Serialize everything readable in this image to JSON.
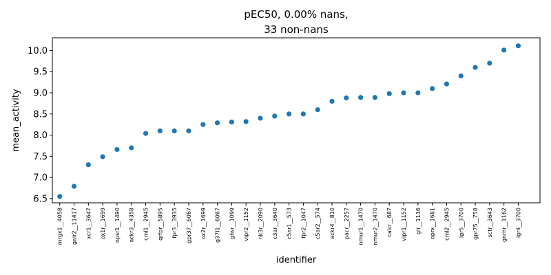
{
  "chart_data": {
    "type": "scatter",
    "title_lines": [
      "pEC50, 0.00% nans,",
      "33 non-nans"
    ],
    "xlabel": "identifier",
    "ylabel": "mean_activity",
    "ylim": [
      6.4,
      10.3
    ],
    "yticks": [
      6.5,
      7.0,
      7.5,
      8.0,
      8.5,
      9.0,
      9.5,
      10.0
    ],
    "ytick_labels": [
      "6.5",
      "7.0",
      "7.5",
      "8.0",
      "8.5",
      "9.0",
      "9.5",
      "10.0"
    ],
    "categories": [
      "mrgx1__4058",
      "galr2__11417",
      "xcr1__3647",
      "ox1r__1699",
      "npsr1__1490",
      "ackr3__4358",
      "cml1__2945",
      "qrfpr__5895",
      "fpr3__3935",
      "gpr37__6067",
      "ox2r__1699",
      "g37l1__6067",
      "ghsr__1099",
      "vipr2__1152",
      "nk3r__2090",
      "c3ar__3640",
      "c5ar1__573",
      "fpr2__1047",
      "c5ar2__574",
      "ackr4__810",
      "pacr__2257",
      "nmur1__1470",
      "nmur2__1470",
      "calcr__687",
      "vipr1__1152",
      "glr__1136",
      "oprx__1681",
      "cml2__2945",
      "lgr5__3700",
      "gpr75__758",
      "sctr__3643",
      "gnrhr__1162",
      "lgr4__3700"
    ],
    "values": [
      6.55,
      6.79,
      7.3,
      7.49,
      7.66,
      7.7,
      8.04,
      8.1,
      8.1,
      8.1,
      8.25,
      8.29,
      8.31,
      8.32,
      8.4,
      8.45,
      8.5,
      8.5,
      8.6,
      8.8,
      8.88,
      8.89,
      8.89,
      8.98,
      9.0,
      9.0,
      9.1,
      9.21,
      9.4,
      9.6,
      9.7,
      10.01,
      10.11
    ],
    "marker_color": "#1f77b4",
    "grid": false
  }
}
